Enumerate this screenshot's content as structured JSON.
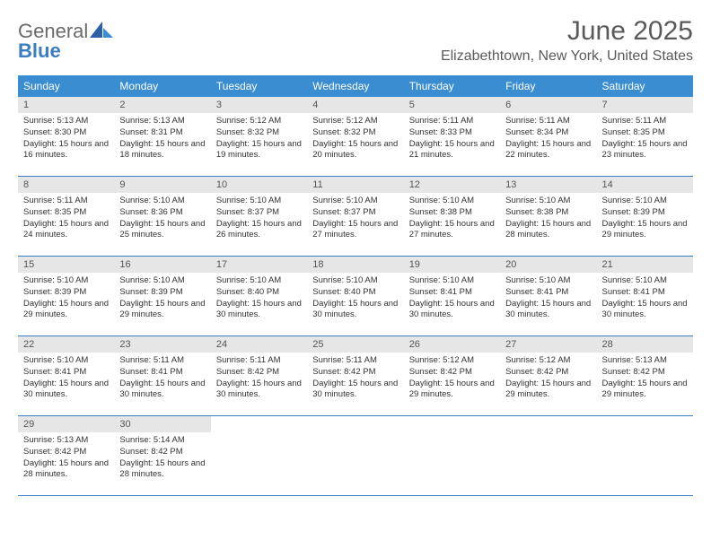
{
  "logo": {
    "word1": "General",
    "word2": "Blue"
  },
  "title": "June 2025",
  "location": "Elizabethtown, New York, United States",
  "colors": {
    "header_bg": "#3a8dd0",
    "header_text": "#ffffff",
    "daynum_bg": "#e6e6e6",
    "daynum_text": "#555555",
    "body_text": "#333333",
    "week_border": "#3a7ec1",
    "logo_gray": "#6a6a6a",
    "logo_blue": "#3a7ec1",
    "title_color": "#5a5a5a"
  },
  "dow": [
    "Sunday",
    "Monday",
    "Tuesday",
    "Wednesday",
    "Thursday",
    "Friday",
    "Saturday"
  ],
  "weeks": [
    [
      {
        "n": "1",
        "sr": "Sunrise: 5:13 AM",
        "ss": "Sunset: 8:30 PM",
        "dl": "Daylight: 15 hours and 16 minutes."
      },
      {
        "n": "2",
        "sr": "Sunrise: 5:13 AM",
        "ss": "Sunset: 8:31 PM",
        "dl": "Daylight: 15 hours and 18 minutes."
      },
      {
        "n": "3",
        "sr": "Sunrise: 5:12 AM",
        "ss": "Sunset: 8:32 PM",
        "dl": "Daylight: 15 hours and 19 minutes."
      },
      {
        "n": "4",
        "sr": "Sunrise: 5:12 AM",
        "ss": "Sunset: 8:32 PM",
        "dl": "Daylight: 15 hours and 20 minutes."
      },
      {
        "n": "5",
        "sr": "Sunrise: 5:11 AM",
        "ss": "Sunset: 8:33 PM",
        "dl": "Daylight: 15 hours and 21 minutes."
      },
      {
        "n": "6",
        "sr": "Sunrise: 5:11 AM",
        "ss": "Sunset: 8:34 PM",
        "dl": "Daylight: 15 hours and 22 minutes."
      },
      {
        "n": "7",
        "sr": "Sunrise: 5:11 AM",
        "ss": "Sunset: 8:35 PM",
        "dl": "Daylight: 15 hours and 23 minutes."
      }
    ],
    [
      {
        "n": "8",
        "sr": "Sunrise: 5:11 AM",
        "ss": "Sunset: 8:35 PM",
        "dl": "Daylight: 15 hours and 24 minutes."
      },
      {
        "n": "9",
        "sr": "Sunrise: 5:10 AM",
        "ss": "Sunset: 8:36 PM",
        "dl": "Daylight: 15 hours and 25 minutes."
      },
      {
        "n": "10",
        "sr": "Sunrise: 5:10 AM",
        "ss": "Sunset: 8:37 PM",
        "dl": "Daylight: 15 hours and 26 minutes."
      },
      {
        "n": "11",
        "sr": "Sunrise: 5:10 AM",
        "ss": "Sunset: 8:37 PM",
        "dl": "Daylight: 15 hours and 27 minutes."
      },
      {
        "n": "12",
        "sr": "Sunrise: 5:10 AM",
        "ss": "Sunset: 8:38 PM",
        "dl": "Daylight: 15 hours and 27 minutes."
      },
      {
        "n": "13",
        "sr": "Sunrise: 5:10 AM",
        "ss": "Sunset: 8:38 PM",
        "dl": "Daylight: 15 hours and 28 minutes."
      },
      {
        "n": "14",
        "sr": "Sunrise: 5:10 AM",
        "ss": "Sunset: 8:39 PM",
        "dl": "Daylight: 15 hours and 29 minutes."
      }
    ],
    [
      {
        "n": "15",
        "sr": "Sunrise: 5:10 AM",
        "ss": "Sunset: 8:39 PM",
        "dl": "Daylight: 15 hours and 29 minutes."
      },
      {
        "n": "16",
        "sr": "Sunrise: 5:10 AM",
        "ss": "Sunset: 8:39 PM",
        "dl": "Daylight: 15 hours and 29 minutes."
      },
      {
        "n": "17",
        "sr": "Sunrise: 5:10 AM",
        "ss": "Sunset: 8:40 PM",
        "dl": "Daylight: 15 hours and 30 minutes."
      },
      {
        "n": "18",
        "sr": "Sunrise: 5:10 AM",
        "ss": "Sunset: 8:40 PM",
        "dl": "Daylight: 15 hours and 30 minutes."
      },
      {
        "n": "19",
        "sr": "Sunrise: 5:10 AM",
        "ss": "Sunset: 8:41 PM",
        "dl": "Daylight: 15 hours and 30 minutes."
      },
      {
        "n": "20",
        "sr": "Sunrise: 5:10 AM",
        "ss": "Sunset: 8:41 PM",
        "dl": "Daylight: 15 hours and 30 minutes."
      },
      {
        "n": "21",
        "sr": "Sunrise: 5:10 AM",
        "ss": "Sunset: 8:41 PM",
        "dl": "Daylight: 15 hours and 30 minutes."
      }
    ],
    [
      {
        "n": "22",
        "sr": "Sunrise: 5:10 AM",
        "ss": "Sunset: 8:41 PM",
        "dl": "Daylight: 15 hours and 30 minutes."
      },
      {
        "n": "23",
        "sr": "Sunrise: 5:11 AM",
        "ss": "Sunset: 8:41 PM",
        "dl": "Daylight: 15 hours and 30 minutes."
      },
      {
        "n": "24",
        "sr": "Sunrise: 5:11 AM",
        "ss": "Sunset: 8:42 PM",
        "dl": "Daylight: 15 hours and 30 minutes."
      },
      {
        "n": "25",
        "sr": "Sunrise: 5:11 AM",
        "ss": "Sunset: 8:42 PM",
        "dl": "Daylight: 15 hours and 30 minutes."
      },
      {
        "n": "26",
        "sr": "Sunrise: 5:12 AM",
        "ss": "Sunset: 8:42 PM",
        "dl": "Daylight: 15 hours and 29 minutes."
      },
      {
        "n": "27",
        "sr": "Sunrise: 5:12 AM",
        "ss": "Sunset: 8:42 PM",
        "dl": "Daylight: 15 hours and 29 minutes."
      },
      {
        "n": "28",
        "sr": "Sunrise: 5:13 AM",
        "ss": "Sunset: 8:42 PM",
        "dl": "Daylight: 15 hours and 29 minutes."
      }
    ],
    [
      {
        "n": "29",
        "sr": "Sunrise: 5:13 AM",
        "ss": "Sunset: 8:42 PM",
        "dl": "Daylight: 15 hours and 28 minutes."
      },
      {
        "n": "30",
        "sr": "Sunrise: 5:14 AM",
        "ss": "Sunset: 8:42 PM",
        "dl": "Daylight: 15 hours and 28 minutes."
      },
      null,
      null,
      null,
      null,
      null
    ]
  ]
}
